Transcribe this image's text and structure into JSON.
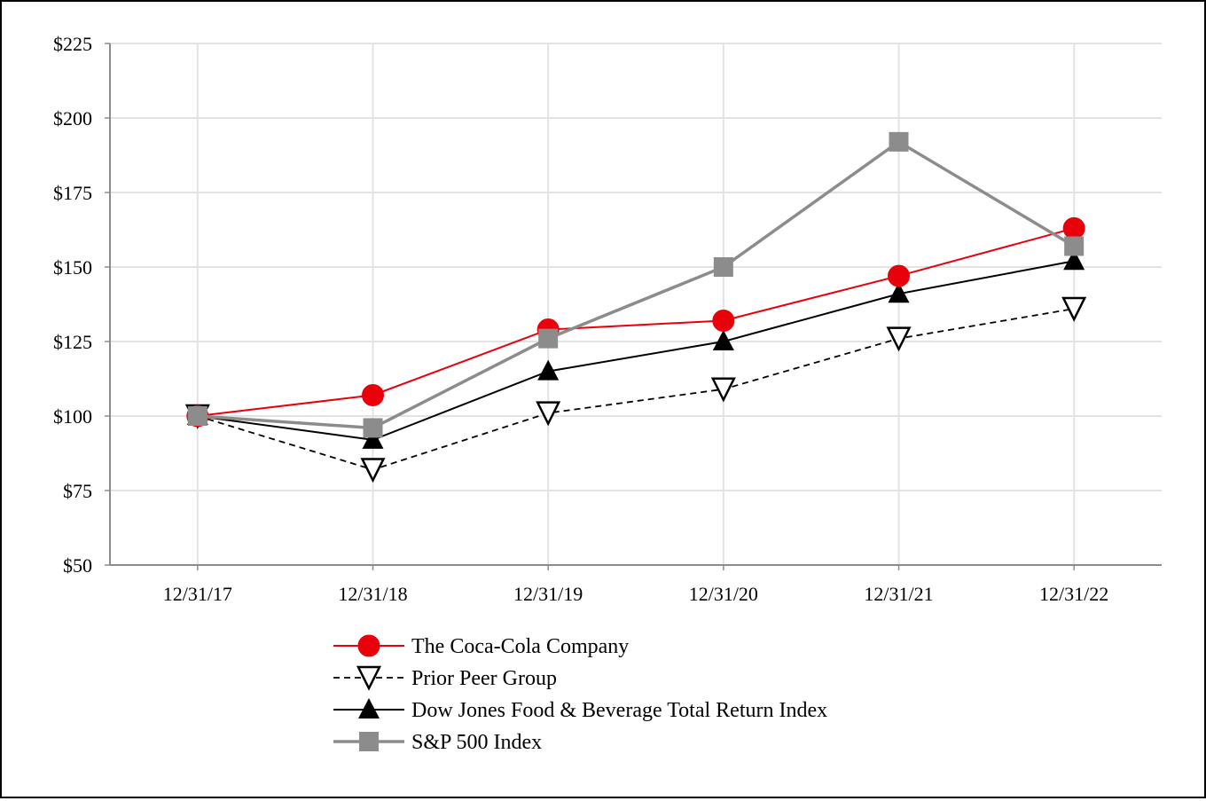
{
  "chart_data": {
    "type": "line",
    "title": "",
    "xlabel": "",
    "ylabel": "",
    "categories": [
      "12/31/17",
      "12/31/18",
      "12/31/19",
      "12/31/20",
      "12/31/21",
      "12/31/22"
    ],
    "ylim": [
      50,
      225
    ],
    "yticks": [
      50,
      75,
      100,
      125,
      150,
      175,
      200,
      225
    ],
    "ytick_labels": [
      "$50",
      "$75",
      "$100",
      "$125",
      "$150",
      "$175",
      "$200",
      "$225"
    ],
    "grid": true,
    "legend_position": "bottom",
    "series": [
      {
        "name": "The Coca-Cola Company",
        "values": [
          100,
          107,
          129,
          132,
          147,
          163
        ],
        "color": "#e8000b",
        "marker": "circle",
        "line": "solid"
      },
      {
        "name": "Prior Peer Group",
        "values": [
          100,
          82,
          101,
          109,
          126,
          136
        ],
        "color": "#000000",
        "marker": "triangle-down-open",
        "line": "dashed"
      },
      {
        "name": "Dow Jones Food & Beverage Total Return Index",
        "values": [
          100,
          92,
          115,
          125,
          141,
          152
        ],
        "color": "#000000",
        "marker": "triangle-up",
        "line": "solid"
      },
      {
        "name": "S&P 500 Index",
        "values": [
          100,
          96,
          126,
          150,
          192,
          157
        ],
        "color": "#8c8c8c",
        "marker": "square",
        "line": "solid-thick"
      }
    ]
  }
}
